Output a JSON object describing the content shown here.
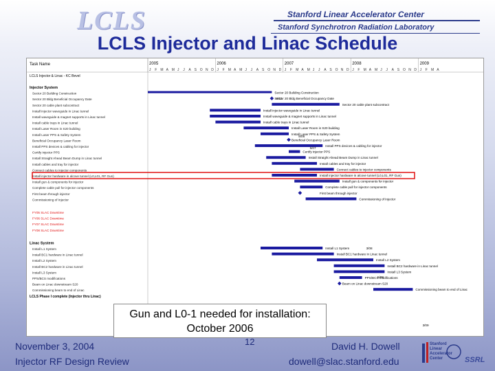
{
  "header": {
    "logo": "LCLS",
    "org_line1": "Stanford Linear Accelerator Center",
    "org_line2": "Stanford Synchrotron Radiation Laboratory"
  },
  "slide": {
    "title": "LCLS Injector and Linac Schedule",
    "callout_line1": "Gun and L0-1 needed for installation:",
    "callout_line2": "October 2006"
  },
  "gantt": {
    "column_header": "Task Name",
    "years": [
      "2005",
      "2006",
      "2007",
      "2008",
      "2009"
    ],
    "months": [
      "J",
      "F",
      "M",
      "A",
      "M",
      "J",
      "J",
      "A",
      "S",
      "O",
      "N",
      "D",
      "J",
      "F",
      "M",
      "A",
      "M",
      "J",
      "J",
      "A",
      "S",
      "O",
      "N",
      "D",
      "J",
      "F",
      "M",
      "A",
      "M",
      "J",
      "J",
      "A",
      "S",
      "O",
      "N",
      "D",
      "J",
      "F",
      "M",
      "A",
      "M",
      "J",
      "J",
      "A",
      "S",
      "O",
      "N",
      "D",
      "J",
      "F",
      "M",
      "A"
    ],
    "top_row": "LCLS Injector & Linac - KC Bevel",
    "sections": [
      {
        "name": "Injector System"
      },
      {
        "name": "Linac System"
      }
    ],
    "injector_tasks": [
      "Sector 20 Building Construction",
      "Sector 20 Bldg Beneficial Occupancy Date",
      "Sector 20 cable plant subcontract",
      "Install injector waveguide in Linac tunnel",
      "Install waveguide & magnet supports in Linac tunnel",
      "Install cable trays in Linac tunnel",
      "Install Laser Room in S20 building",
      "Install Laser PPS & Safety System",
      "Beneficial Occupancy Laser Room",
      "Install PPS devices & cabling for injector",
      "Certify injector PPS",
      "Install Straight Ahead Beam Dump in Linac tunnel",
      "Install cables and tray for injector",
      "Connect cables to injector components",
      "Install injector hardware in alcove tunnel (L0,L01, RF Gun)",
      "Install gun & components for injector",
      "Complete cable pull for injector components",
      "First beam through injector",
      "Commissioning of Injector"
    ],
    "downtime_rows": [
      "FY05 SLAC Downtime",
      "FY06 SLAC Downtime",
      "FY07 SLAC Downtime",
      "FY08 SLAC Downtime"
    ],
    "linac_tasks": [
      "Install L1 System",
      "Install BC1 hardware in Linac tunnel",
      "Install L2 System",
      "Install BC2 hardware in Linac tunnel",
      "Install L3 System",
      "PPS/BCS modifications",
      "Beam on Linac downstream S20",
      "Commissioning beam to end of Linac"
    ],
    "milestones": [
      "8/12",
      "8/06",
      "5/07",
      "3/08",
      "5/08",
      "3/09"
    ],
    "last_row": "LCLS Phase I complete (Injector thru Linac)"
  },
  "footer": {
    "date": "November 3, 2004",
    "page": "12",
    "author": "David H. Dowell",
    "event": "Injector RF Design Review",
    "email": "dowell@slac.stanford.edu",
    "logo_lines": [
      "Stanford",
      "Linear",
      "Accelerator",
      "Center"
    ],
    "ssrl": "SSRL"
  },
  "colors": {
    "title": "#1e2b9a",
    "bar": "#1a1aa0",
    "highlight": "#e01010",
    "downtime": "#e01010"
  }
}
